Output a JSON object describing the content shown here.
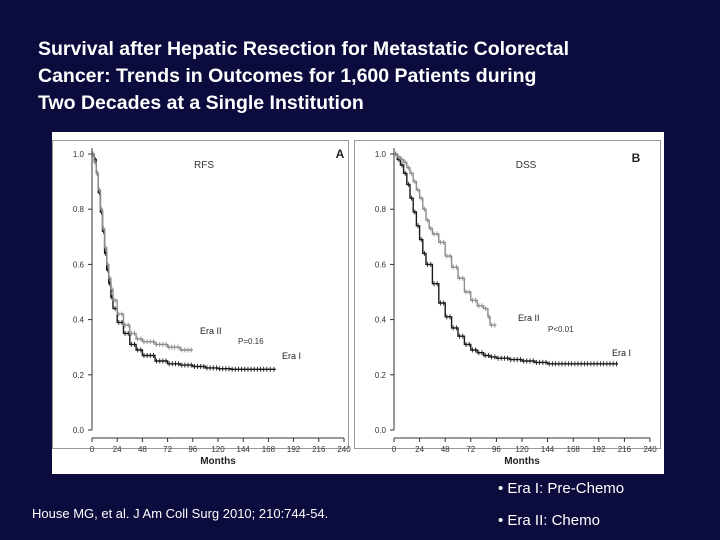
{
  "slide": {
    "title_lines": [
      "Survival after Hepatic Resection for Metastatic Colorectal",
      "Cancer: Trends in Outcomes for 1,600 Patients during",
      "Two Decades at a Single Institution"
    ],
    "citation": "House MG, et al. J Am Coll Surg 2010; 210:744-54.",
    "legend_notes": [
      "• Era I: Pre-Chemo",
      "• Era II: Chemo"
    ]
  },
  "colors": {
    "background": "#0b0b3e",
    "era_i": "#1a1a1a",
    "era_ii": "#8c8c8c",
    "axis": "#333333"
  },
  "chart_data": [
    {
      "type": "line",
      "panel_letter": "A",
      "title": "RFS",
      "xlabel": "Months",
      "ylabel": "",
      "xlim": [
        0,
        240
      ],
      "ylim": [
        0,
        1.0
      ],
      "xticks": [
        0,
        24,
        48,
        72,
        96,
        120,
        144,
        168,
        192,
        216,
        240
      ],
      "yticks": [
        0.0,
        0.2,
        0.4,
        0.6,
        0.8,
        1.0
      ],
      "grid": false,
      "annotation": "P=0.16",
      "series": [
        {
          "name": "Era I",
          "color": "#1a1a1a",
          "points": [
            [
              0,
              1.0
            ],
            [
              2,
              0.98
            ],
            [
              4,
              0.93
            ],
            [
              6,
              0.86
            ],
            [
              8,
              0.79
            ],
            [
              10,
              0.72
            ],
            [
              12,
              0.64
            ],
            [
              14,
              0.58
            ],
            [
              16,
              0.53
            ],
            [
              18,
              0.48
            ],
            [
              20,
              0.44
            ],
            [
              24,
              0.39
            ],
            [
              30,
              0.35
            ],
            [
              36,
              0.31
            ],
            [
              42,
              0.29
            ],
            [
              48,
              0.27
            ],
            [
              60,
              0.25
            ],
            [
              72,
              0.24
            ],
            [
              84,
              0.235
            ],
            [
              96,
              0.23
            ],
            [
              108,
              0.225
            ],
            [
              120,
              0.222
            ],
            [
              132,
              0.22
            ],
            [
              144,
              0.22
            ],
            [
              156,
              0.22
            ],
            [
              168,
              0.22
            ],
            [
              175,
              0.22
            ]
          ]
        },
        {
          "name": "Era II",
          "color": "#8c8c8c",
          "points": [
            [
              0,
              1.0
            ],
            [
              2,
              0.97
            ],
            [
              4,
              0.93
            ],
            [
              6,
              0.87
            ],
            [
              8,
              0.8
            ],
            [
              10,
              0.73
            ],
            [
              12,
              0.66
            ],
            [
              14,
              0.6
            ],
            [
              16,
              0.55
            ],
            [
              18,
              0.51
            ],
            [
              20,
              0.47
            ],
            [
              24,
              0.42
            ],
            [
              30,
              0.38
            ],
            [
              36,
              0.35
            ],
            [
              42,
              0.33
            ],
            [
              48,
              0.32
            ],
            [
              60,
              0.31
            ],
            [
              72,
              0.3
            ],
            [
              80,
              0.3
            ],
            [
              84,
              0.29
            ],
            [
              96,
              0.29
            ]
          ]
        }
      ]
    },
    {
      "type": "line",
      "panel_letter": "B",
      "title": "DSS",
      "xlabel": "Months",
      "ylabel": "",
      "xlim": [
        0,
        240
      ],
      "ylim": [
        0,
        1.0
      ],
      "xticks": [
        0,
        24,
        48,
        72,
        96,
        120,
        144,
        168,
        192,
        216,
        240
      ],
      "yticks": [
        0.0,
        0.2,
        0.4,
        0.6,
        0.8,
        1.0
      ],
      "grid": false,
      "annotation": "P<0.01",
      "series": [
        {
          "name": "Era I",
          "color": "#1a1a1a",
          "points": [
            [
              0,
              1.0
            ],
            [
              3,
              0.98
            ],
            [
              6,
              0.96
            ],
            [
              9,
              0.93
            ],
            [
              12,
              0.89
            ],
            [
              15,
              0.84
            ],
            [
              18,
              0.79
            ],
            [
              21,
              0.74
            ],
            [
              24,
              0.69
            ],
            [
              27,
              0.64
            ],
            [
              30,
              0.6
            ],
            [
              36,
              0.53
            ],
            [
              42,
              0.46
            ],
            [
              48,
              0.41
            ],
            [
              54,
              0.37
            ],
            [
              60,
              0.34
            ],
            [
              66,
              0.31
            ],
            [
              72,
              0.29
            ],
            [
              78,
              0.28
            ],
            [
              84,
              0.27
            ],
            [
              90,
              0.265
            ],
            [
              96,
              0.26
            ],
            [
              108,
              0.255
            ],
            [
              120,
              0.25
            ],
            [
              132,
              0.245
            ],
            [
              144,
              0.24
            ],
            [
              156,
              0.24
            ],
            [
              168,
              0.24
            ],
            [
              180,
              0.24
            ],
            [
              192,
              0.24
            ],
            [
              210,
              0.24
            ]
          ]
        },
        {
          "name": "Era II",
          "color": "#8c8c8c",
          "points": [
            [
              0,
              1.0
            ],
            [
              3,
              0.99
            ],
            [
              6,
              0.98
            ],
            [
              9,
              0.97
            ],
            [
              12,
              0.95
            ],
            [
              15,
              0.93
            ],
            [
              18,
              0.9
            ],
            [
              21,
              0.87
            ],
            [
              24,
              0.84
            ],
            [
              27,
              0.8
            ],
            [
              30,
              0.76
            ],
            [
              33,
              0.73
            ],
            [
              36,
              0.71
            ],
            [
              42,
              0.68
            ],
            [
              48,
              0.63
            ],
            [
              54,
              0.59
            ],
            [
              60,
              0.55
            ],
            [
              66,
              0.5
            ],
            [
              72,
              0.47
            ],
            [
              78,
              0.45
            ],
            [
              84,
              0.44
            ],
            [
              88,
              0.41
            ],
            [
              90,
              0.38
            ],
            [
              96,
              0.38
            ]
          ]
        }
      ]
    }
  ]
}
